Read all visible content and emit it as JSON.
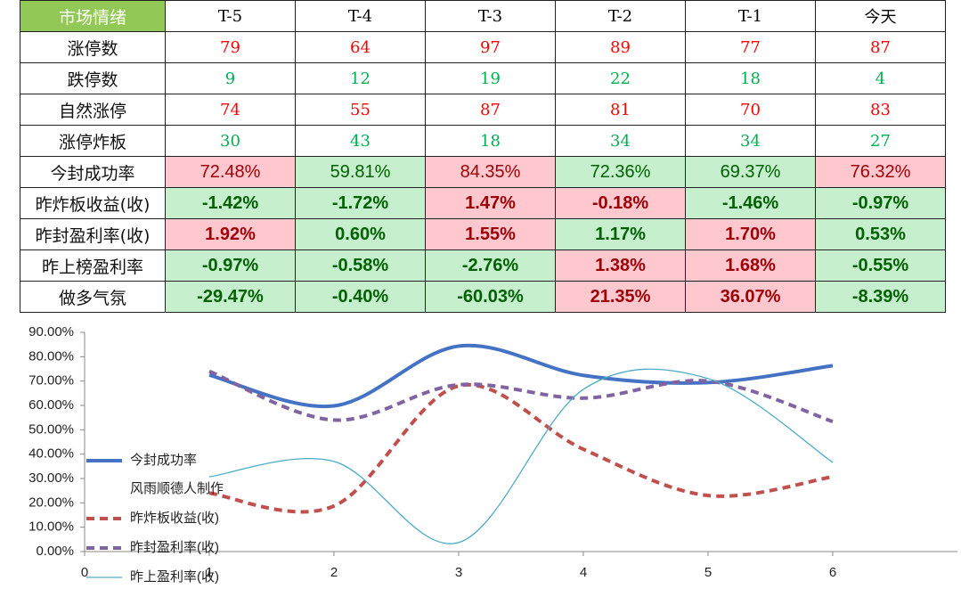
{
  "table": {
    "header": [
      "市场情绪",
      "T-5",
      "T-4",
      "T-3",
      "T-2",
      "T-1",
      "今天"
    ],
    "rows": [
      {
        "label": "涨停数",
        "color": "#ff0000",
        "cells": [
          "79",
          "64",
          "97",
          "89",
          "77",
          "87"
        ]
      },
      {
        "label": "跌停数",
        "color": "#00b050",
        "cells": [
          "9",
          "12",
          "19",
          "22",
          "18",
          "4"
        ]
      },
      {
        "label": "自然涨停",
        "color": "#ff0000",
        "cells": [
          "74",
          "55",
          "87",
          "81",
          "70",
          "83"
        ]
      },
      {
        "label": "涨停炸板",
        "color": "#00b050",
        "cells": [
          "30",
          "43",
          "18",
          "34",
          "34",
          "27"
        ]
      },
      {
        "label": "今封成功率",
        "fills": [
          "#ffc7ce",
          "#c6efce",
          "#ffc7ce",
          "#c6efce",
          "#c6efce",
          "#ffc7ce"
        ],
        "cells": [
          "72.48%",
          "59.81%",
          "84.35%",
          "72.36%",
          "69.37%",
          "76.32%"
        ]
      },
      {
        "label": "昨炸板收益(收)",
        "bold": true,
        "fills": [
          "#c6efce",
          "#c6efce",
          "#ffc7ce",
          "#ffc7ce",
          "#c6efce",
          "#c6efce"
        ],
        "cells": [
          "-1.42%",
          "-1.72%",
          "1.47%",
          "-0.18%",
          "-1.46%",
          "-0.97%"
        ]
      },
      {
        "label": "昨封盈利率(收)",
        "bold": true,
        "fills": [
          "#ffc7ce",
          "#c6efce",
          "#ffc7ce",
          "#c6efce",
          "#ffc7ce",
          "#c6efce"
        ],
        "cells": [
          "1.92%",
          "0.60%",
          "1.55%",
          "1.17%",
          "1.70%",
          "0.53%"
        ]
      },
      {
        "label": "昨上榜盈利率",
        "bold": true,
        "fills": [
          "#c6efce",
          "#c6efce",
          "#c6efce",
          "#ffc7ce",
          "#ffc7ce",
          "#c6efce"
        ],
        "cells": [
          "-0.97%",
          "-0.58%",
          "-2.76%",
          "1.38%",
          "1.68%",
          "-0.55%"
        ]
      },
      {
        "label": "做多气氛",
        "bold": true,
        "fills": [
          "#c6efce",
          "#c6efce",
          "#c6efce",
          "#ffc7ce",
          "#ffc7ce",
          "#c6efce"
        ],
        "cells": [
          "-29.47%",
          "-0.40%",
          "-60.03%",
          "21.35%",
          "36.07%",
          "-8.39%"
        ]
      }
    ]
  },
  "chart_data": {
    "type": "line",
    "smooth": true,
    "x": [
      1,
      2,
      3,
      4,
      5,
      6
    ],
    "xlim": [
      0,
      7
    ],
    "xticks": [
      0,
      1,
      2,
      3,
      4,
      5,
      6
    ],
    "ylim": [
      0,
      90
    ],
    "yticks": [
      {
        "value": 0,
        "label": "0.00%"
      },
      {
        "value": 10,
        "label": "10.00%"
      },
      {
        "value": 20,
        "label": "20.00%"
      },
      {
        "value": 30,
        "label": "30.00%"
      },
      {
        "value": 40,
        "label": "40.00%"
      },
      {
        "value": 50,
        "label": "50.00%"
      },
      {
        "value": 60,
        "label": "60.00%"
      },
      {
        "value": 70,
        "label": "70.00%"
      },
      {
        "value": 80,
        "label": "80.00%"
      },
      {
        "value": 90,
        "label": "90.00%"
      }
    ],
    "annotation": "风雨顺德人制作",
    "series": [
      {
        "name": "今封成功率",
        "color": "#4472c4",
        "width": 4,
        "dash": "",
        "values": [
          72.48,
          59.81,
          84.35,
          72.36,
          69.37,
          76.32
        ]
      },
      {
        "name": "昨炸板收益(收)",
        "color": "#c0504d",
        "width": 4,
        "dash": "9 6",
        "values": [
          24,
          18.7,
          68,
          42,
          23,
          30.7
        ]
      },
      {
        "name": "昨封盈利率(收)",
        "color": "#8064a2",
        "width": 4,
        "dash": "9 6",
        "values": [
          74,
          54,
          68.5,
          63,
          70,
          53.4
        ]
      },
      {
        "name": "昨上盈利率(收)",
        "color": "#4bacc6",
        "width": 1.3,
        "dash": "",
        "values": [
          30.7,
          37,
          3.7,
          66.6,
          71,
          36.6
        ]
      }
    ]
  }
}
